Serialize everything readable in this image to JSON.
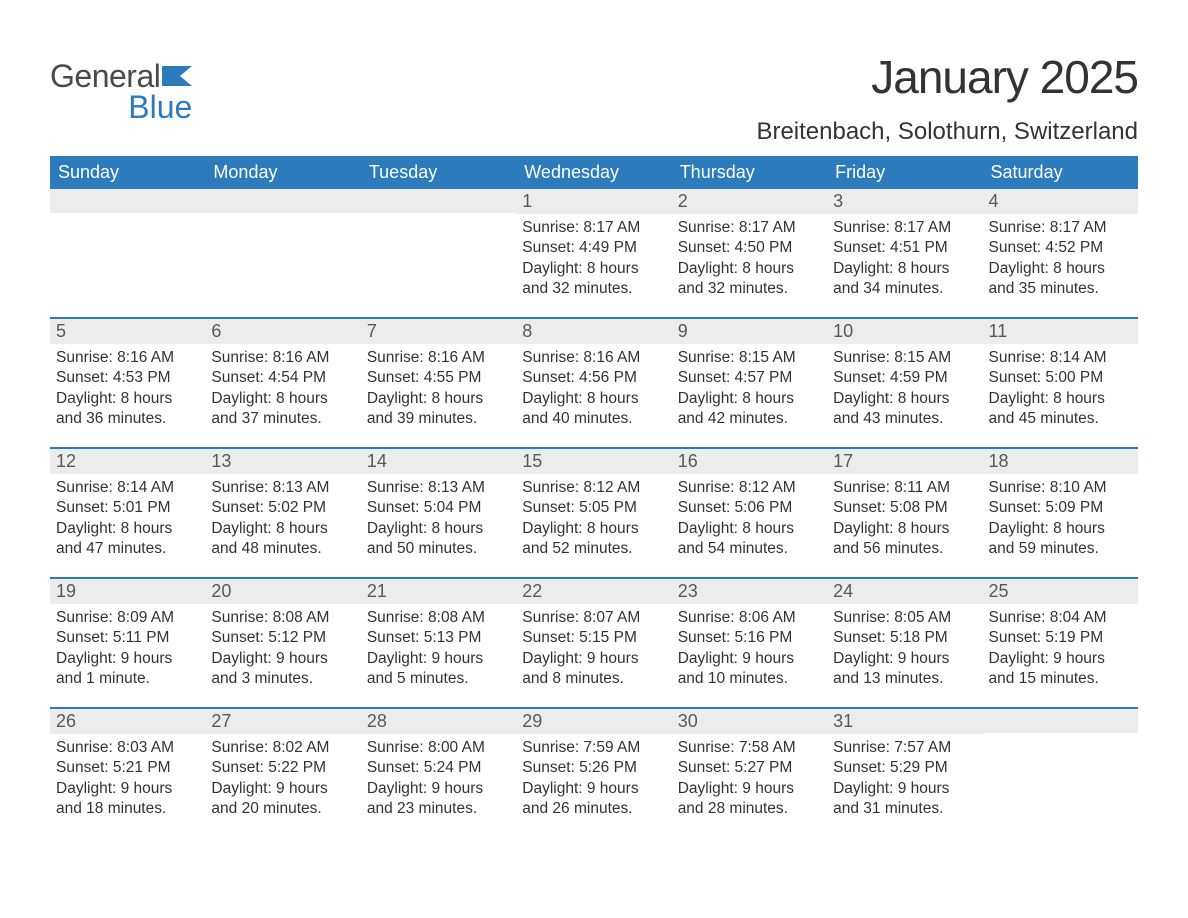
{
  "logo": {
    "word1": "General",
    "word2": "Blue",
    "flag_color": "#2b7bbd"
  },
  "title": "January 2025",
  "location": "Breitenbach, Solothurn, Switzerland",
  "colors": {
    "header_bg": "#2b7bbd",
    "header_text": "#ffffff",
    "daynum_bg": "#ececec",
    "daynum_text": "#595959",
    "body_text": "#333333",
    "week_border": "#2b7bbd",
    "page_bg": "#ffffff"
  },
  "typography": {
    "title_fontsize": 46,
    "location_fontsize": 24,
    "dayheader_fontsize": 18,
    "daynum_fontsize": 18,
    "body_fontsize": 15.5
  },
  "day_names": [
    "Sunday",
    "Monday",
    "Tuesday",
    "Wednesday",
    "Thursday",
    "Friday",
    "Saturday"
  ],
  "weeks": [
    [
      {
        "day": "",
        "sunrise": "",
        "sunset": "",
        "daylight": ""
      },
      {
        "day": "",
        "sunrise": "",
        "sunset": "",
        "daylight": ""
      },
      {
        "day": "",
        "sunrise": "",
        "sunset": "",
        "daylight": ""
      },
      {
        "day": "1",
        "sunrise": "Sunrise: 8:17 AM",
        "sunset": "Sunset: 4:49 PM",
        "daylight": "Daylight: 8 hours and 32 minutes."
      },
      {
        "day": "2",
        "sunrise": "Sunrise: 8:17 AM",
        "sunset": "Sunset: 4:50 PM",
        "daylight": "Daylight: 8 hours and 32 minutes."
      },
      {
        "day": "3",
        "sunrise": "Sunrise: 8:17 AM",
        "sunset": "Sunset: 4:51 PM",
        "daylight": "Daylight: 8 hours and 34 minutes."
      },
      {
        "day": "4",
        "sunrise": "Sunrise: 8:17 AM",
        "sunset": "Sunset: 4:52 PM",
        "daylight": "Daylight: 8 hours and 35 minutes."
      }
    ],
    [
      {
        "day": "5",
        "sunrise": "Sunrise: 8:16 AM",
        "sunset": "Sunset: 4:53 PM",
        "daylight": "Daylight: 8 hours and 36 minutes."
      },
      {
        "day": "6",
        "sunrise": "Sunrise: 8:16 AM",
        "sunset": "Sunset: 4:54 PM",
        "daylight": "Daylight: 8 hours and 37 minutes."
      },
      {
        "day": "7",
        "sunrise": "Sunrise: 8:16 AM",
        "sunset": "Sunset: 4:55 PM",
        "daylight": "Daylight: 8 hours and 39 minutes."
      },
      {
        "day": "8",
        "sunrise": "Sunrise: 8:16 AM",
        "sunset": "Sunset: 4:56 PM",
        "daylight": "Daylight: 8 hours and 40 minutes."
      },
      {
        "day": "9",
        "sunrise": "Sunrise: 8:15 AM",
        "sunset": "Sunset: 4:57 PM",
        "daylight": "Daylight: 8 hours and 42 minutes."
      },
      {
        "day": "10",
        "sunrise": "Sunrise: 8:15 AM",
        "sunset": "Sunset: 4:59 PM",
        "daylight": "Daylight: 8 hours and 43 minutes."
      },
      {
        "day": "11",
        "sunrise": "Sunrise: 8:14 AM",
        "sunset": "Sunset: 5:00 PM",
        "daylight": "Daylight: 8 hours and 45 minutes."
      }
    ],
    [
      {
        "day": "12",
        "sunrise": "Sunrise: 8:14 AM",
        "sunset": "Sunset: 5:01 PM",
        "daylight": "Daylight: 8 hours and 47 minutes."
      },
      {
        "day": "13",
        "sunrise": "Sunrise: 8:13 AM",
        "sunset": "Sunset: 5:02 PM",
        "daylight": "Daylight: 8 hours and 48 minutes."
      },
      {
        "day": "14",
        "sunrise": "Sunrise: 8:13 AM",
        "sunset": "Sunset: 5:04 PM",
        "daylight": "Daylight: 8 hours and 50 minutes."
      },
      {
        "day": "15",
        "sunrise": "Sunrise: 8:12 AM",
        "sunset": "Sunset: 5:05 PM",
        "daylight": "Daylight: 8 hours and 52 minutes."
      },
      {
        "day": "16",
        "sunrise": "Sunrise: 8:12 AM",
        "sunset": "Sunset: 5:06 PM",
        "daylight": "Daylight: 8 hours and 54 minutes."
      },
      {
        "day": "17",
        "sunrise": "Sunrise: 8:11 AM",
        "sunset": "Sunset: 5:08 PM",
        "daylight": "Daylight: 8 hours and 56 minutes."
      },
      {
        "day": "18",
        "sunrise": "Sunrise: 8:10 AM",
        "sunset": "Sunset: 5:09 PM",
        "daylight": "Daylight: 8 hours and 59 minutes."
      }
    ],
    [
      {
        "day": "19",
        "sunrise": "Sunrise: 8:09 AM",
        "sunset": "Sunset: 5:11 PM",
        "daylight": "Daylight: 9 hours and 1 minute."
      },
      {
        "day": "20",
        "sunrise": "Sunrise: 8:08 AM",
        "sunset": "Sunset: 5:12 PM",
        "daylight": "Daylight: 9 hours and 3 minutes."
      },
      {
        "day": "21",
        "sunrise": "Sunrise: 8:08 AM",
        "sunset": "Sunset: 5:13 PM",
        "daylight": "Daylight: 9 hours and 5 minutes."
      },
      {
        "day": "22",
        "sunrise": "Sunrise: 8:07 AM",
        "sunset": "Sunset: 5:15 PM",
        "daylight": "Daylight: 9 hours and 8 minutes."
      },
      {
        "day": "23",
        "sunrise": "Sunrise: 8:06 AM",
        "sunset": "Sunset: 5:16 PM",
        "daylight": "Daylight: 9 hours and 10 minutes."
      },
      {
        "day": "24",
        "sunrise": "Sunrise: 8:05 AM",
        "sunset": "Sunset: 5:18 PM",
        "daylight": "Daylight: 9 hours and 13 minutes."
      },
      {
        "day": "25",
        "sunrise": "Sunrise: 8:04 AM",
        "sunset": "Sunset: 5:19 PM",
        "daylight": "Daylight: 9 hours and 15 minutes."
      }
    ],
    [
      {
        "day": "26",
        "sunrise": "Sunrise: 8:03 AM",
        "sunset": "Sunset: 5:21 PM",
        "daylight": "Daylight: 9 hours and 18 minutes."
      },
      {
        "day": "27",
        "sunrise": "Sunrise: 8:02 AM",
        "sunset": "Sunset: 5:22 PM",
        "daylight": "Daylight: 9 hours and 20 minutes."
      },
      {
        "day": "28",
        "sunrise": "Sunrise: 8:00 AM",
        "sunset": "Sunset: 5:24 PM",
        "daylight": "Daylight: 9 hours and 23 minutes."
      },
      {
        "day": "29",
        "sunrise": "Sunrise: 7:59 AM",
        "sunset": "Sunset: 5:26 PM",
        "daylight": "Daylight: 9 hours and 26 minutes."
      },
      {
        "day": "30",
        "sunrise": "Sunrise: 7:58 AM",
        "sunset": "Sunset: 5:27 PM",
        "daylight": "Daylight: 9 hours and 28 minutes."
      },
      {
        "day": "31",
        "sunrise": "Sunrise: 7:57 AM",
        "sunset": "Sunset: 5:29 PM",
        "daylight": "Daylight: 9 hours and 31 minutes."
      },
      {
        "day": "",
        "sunrise": "",
        "sunset": "",
        "daylight": ""
      }
    ]
  ]
}
